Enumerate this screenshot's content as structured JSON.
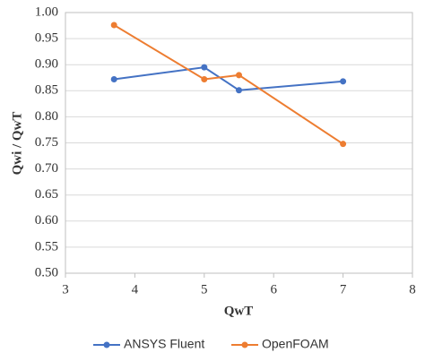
{
  "chart_data": {
    "type": "line",
    "x_label": "QwT",
    "y_label": "Qwi / QwT",
    "series": [
      {
        "name": "ANSYS Fluent",
        "color": "#4472c4",
        "x": [
          3.7,
          5,
          5.5,
          7
        ],
        "values": [
          0.872,
          0.895,
          0.851,
          0.868
        ]
      },
      {
        "name": "OpenFOAM",
        "color": "#ed7d31",
        "x": [
          3.7,
          5,
          5.5,
          7
        ],
        "values": [
          0.976,
          0.872,
          0.88,
          0.748
        ]
      }
    ],
    "xlim": [
      3,
      8
    ],
    "xticks": [
      3,
      4,
      5,
      6,
      7,
      8
    ],
    "ylim": [
      0.5,
      1
    ],
    "yticks": [
      {
        "value": 0.5,
        "label": "0.50"
      },
      0.55,
      {
        "value": 0.6,
        "label": "0.60"
      },
      0.65,
      {
        "value": 0.7,
        "label": "0.70"
      },
      0.75,
      {
        "value": 0.8,
        "label": "0.80"
      },
      0.85,
      {
        "value": 0.9,
        "label": "0.90"
      },
      0.95,
      {
        "value": 1,
        "label": "1.00"
      }
    ],
    "grid": true,
    "legend": "bottom"
  }
}
